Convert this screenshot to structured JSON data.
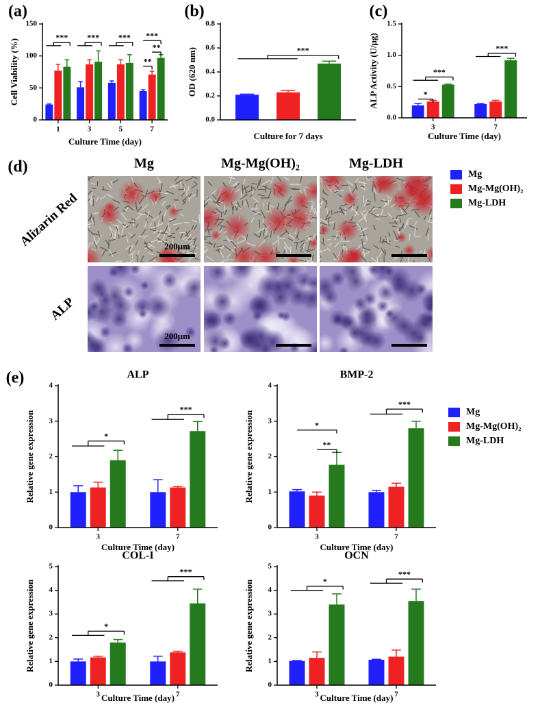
{
  "chart_data": [
    {
      "type": "bar",
      "panel": "(a)",
      "y_label": "Cell Viability (%)",
      "x_label": "Culture Time (day)",
      "categories": [
        "1",
        "3",
        "5",
        "7"
      ],
      "ylim": [
        0,
        150
      ],
      "yticks": [
        0,
        50,
        100,
        150
      ],
      "series": [
        {
          "name": "Mg",
          "color": "#2020ff",
          "values": [
            24,
            51,
            58,
            45
          ],
          "errors": [
            1,
            9,
            3,
            2
          ]
        },
        {
          "name": "Mg-Mg(OH)₂",
          "color": "#ee2222",
          "values": [
            77,
            87,
            87,
            71
          ],
          "errors": [
            10,
            7,
            7,
            5
          ]
        },
        {
          "name": "Mg-LDH",
          "color": "#267a1e",
          "values": [
            83,
            91,
            89,
            97
          ],
          "errors": [
            11,
            17,
            13,
            5
          ]
        }
      ],
      "annotations": [
        "***",
        "***",
        "***",
        "***",
        "**",
        "**"
      ]
    },
    {
      "type": "bar",
      "panel": "(b)",
      "y_label": "OD (620 nm)",
      "x_label": "Culture for 7 days",
      "ylim": [
        0,
        0.8
      ],
      "yticks": [
        {
          "value": 0,
          "label": "0.0"
        },
        0.2,
        0.4,
        0.6,
        0.8
      ],
      "series": [
        {
          "name": "Mg",
          "color": "#2020ff",
          "values": [
            0.21
          ],
          "errors": [
            0.005
          ]
        },
        {
          "name": "Mg-Mg(OH)₂",
          "color": "#ee2222",
          "values": [
            0.23
          ],
          "errors": [
            0.015
          ]
        },
        {
          "name": "Mg-LDH",
          "color": "#267a1e",
          "values": [
            0.47
          ],
          "errors": [
            0.02
          ]
        }
      ],
      "annotations": [
        "***"
      ]
    },
    {
      "type": "bar",
      "panel": "(c)",
      "y_label": "ALP Activity (U/μg)",
      "x_label": "Culture Time (day)",
      "categories": [
        "3",
        "7"
      ],
      "ylim": [
        0,
        1.5
      ],
      "yticks": [
        {
          "value": 0,
          "label": "0.0"
        },
        0.5,
        {
          "value": 1,
          "label": "1.0"
        },
        1.5
      ],
      "legend": "right",
      "series": [
        {
          "name": "Mg",
          "color": "#2020ff",
          "values": [
            0.2,
            0.22
          ],
          "errors": [
            0.03,
            0.01
          ]
        },
        {
          "name": "Mg-Mg(OH)₂",
          "color": "#ee2222",
          "values": [
            0.26,
            0.26
          ],
          "errors": [
            0.02,
            0.02
          ]
        },
        {
          "name": "Mg-LDH",
          "color": "#267a1e",
          "values": [
            0.53,
            0.92
          ],
          "errors": [
            0.01,
            0.03
          ]
        }
      ],
      "annotations": [
        "*",
        "***",
        "***"
      ]
    },
    {
      "type": "bar",
      "panel": "(e)",
      "title": "ALP",
      "y_label": "Relative gene expression",
      "x_label": "Culture Time (day)",
      "categories": [
        "3",
        "7"
      ],
      "ylim": [
        0,
        4
      ],
      "yticks": [
        0,
        1,
        2,
        3,
        4
      ],
      "series": [
        {
          "name": "Mg",
          "color": "#2020ff",
          "values": [
            1.0,
            1.0
          ],
          "errors": [
            0.18,
            0.35
          ]
        },
        {
          "name": "Mg-Mg(OH)₂",
          "color": "#ee2222",
          "values": [
            1.13,
            1.13
          ],
          "errors": [
            0.15,
            0.03
          ]
        },
        {
          "name": "Mg-LDH",
          "color": "#267a1e",
          "values": [
            1.9,
            2.72
          ],
          "errors": [
            0.28,
            0.27
          ]
        }
      ],
      "annotations": [
        "*",
        "***"
      ]
    },
    {
      "type": "bar",
      "title": "BMP-2",
      "y_label": "Relative gene expression",
      "x_label": "Culture Time (day)",
      "categories": [
        "3",
        "7"
      ],
      "ylim": [
        0,
        4
      ],
      "yticks": [
        0,
        1,
        2,
        3,
        4
      ],
      "legend": "right",
      "series": [
        {
          "name": "Mg",
          "color": "#2020ff",
          "values": [
            1.02,
            1.0
          ],
          "errors": [
            0.05,
            0.05
          ]
        },
        {
          "name": "Mg-Mg(OH)₂",
          "color": "#ee2222",
          "values": [
            0.9,
            1.15
          ],
          "errors": [
            0.1,
            0.1
          ]
        },
        {
          "name": "Mg-LDH",
          "color": "#267a1e",
          "values": [
            1.77,
            2.8
          ],
          "errors": [
            0.35,
            0.2
          ]
        }
      ],
      "annotations": [
        "*",
        "**",
        "***"
      ]
    },
    {
      "type": "bar",
      "title": "COL-I",
      "y_label": "Relative gene expression",
      "x_label": "Culture Time (day)",
      "categories": [
        "3",
        "7"
      ],
      "ylim": [
        0,
        5
      ],
      "yticks": [
        0,
        1,
        2,
        3,
        4,
        5
      ],
      "series": [
        {
          "name": "Mg",
          "color": "#2020ff",
          "values": [
            1.0,
            1.0
          ],
          "errors": [
            0.1,
            0.22
          ]
        },
        {
          "name": "Mg-Mg(OH)₂",
          "color": "#ee2222",
          "values": [
            1.17,
            1.38
          ],
          "errors": [
            0.05,
            0.05
          ]
        },
        {
          "name": "Mg-LDH",
          "color": "#267a1e",
          "values": [
            1.8,
            3.45
          ],
          "errors": [
            0.12,
            0.6
          ]
        }
      ],
      "annotations": [
        "*",
        "***"
      ]
    },
    {
      "type": "bar",
      "title": "OCN",
      "y_label": "Relative gene expression",
      "x_label": "Culture Time (day)",
      "categories": [
        "3",
        "7"
      ],
      "ylim": [
        0,
        5
      ],
      "yticks": [
        0,
        1,
        2,
        3,
        4,
        5
      ],
      "series": [
        {
          "name": "Mg",
          "color": "#2020ff",
          "values": [
            1.02,
            1.07
          ],
          "errors": [
            0.02,
            0.02
          ]
        },
        {
          "name": "Mg-Mg(OH)₂",
          "color": "#ee2222",
          "values": [
            1.15,
            1.2
          ],
          "errors": [
            0.25,
            0.28
          ]
        },
        {
          "name": "Mg-LDH",
          "color": "#267a1e",
          "values": [
            3.4,
            3.55
          ],
          "errors": [
            0.45,
            0.5
          ]
        }
      ],
      "annotations": [
        "*",
        "***"
      ]
    }
  ],
  "image_panel": {
    "panel": "(d)",
    "columns": [
      "Mg",
      "Mg-Mg(OH)₂",
      "Mg-LDH"
    ],
    "rows": [
      "Alizarin Red",
      "ALP"
    ],
    "scale_bar": "200μm"
  }
}
